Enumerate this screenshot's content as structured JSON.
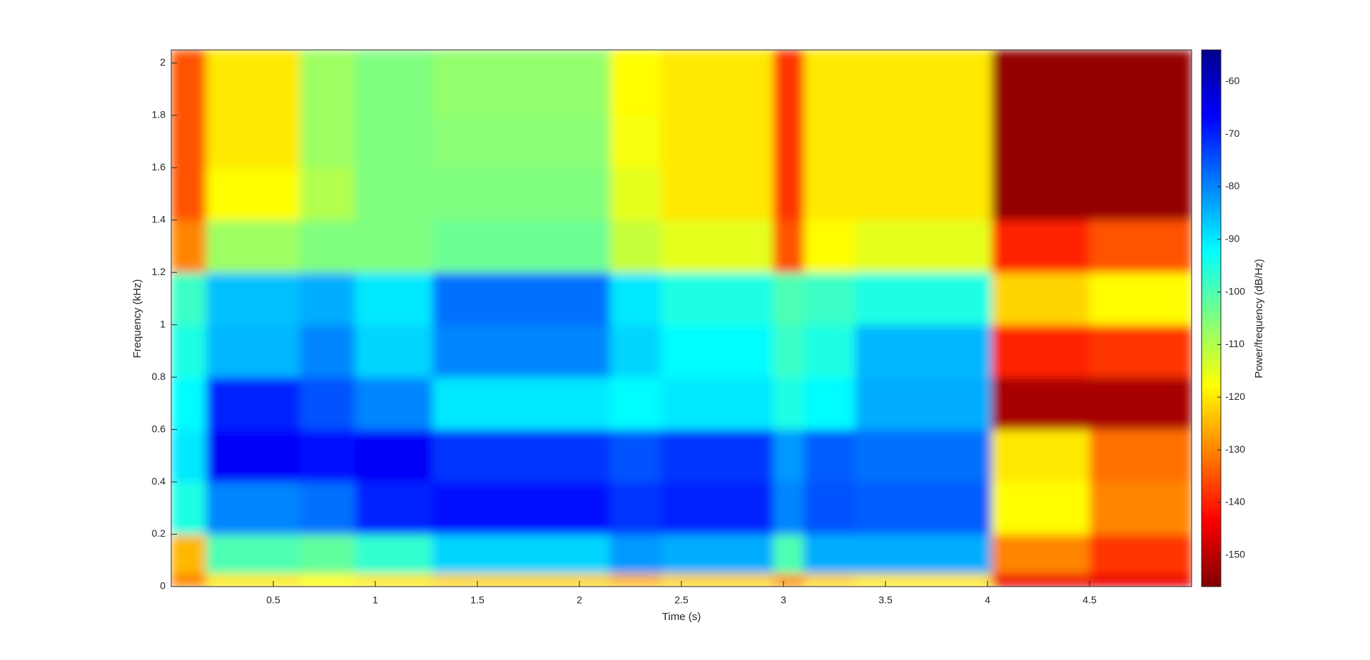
{
  "chart_data": {
    "type": "heatmap",
    "xlabel": "Time (s)",
    "ylabel": "Frequency (kHz)",
    "colorbar_label": "Power/frequency (dB/Hz)",
    "xbins": [
      0,
      0.17,
      0.63,
      0.9,
      1.28,
      2.15,
      2.4,
      2.95,
      3.1,
      3.35,
      4.02,
      4.5,
      5
    ],
    "ybins": [
      0,
      0.05,
      0.2,
      0.4,
      0.6,
      0.8,
      1.0,
      1.2,
      1.4,
      1.6,
      1.8,
      2.05
    ],
    "values": [
      [
        -130,
        -120,
        -118,
        -120,
        -122,
        -125,
        -122,
        -128,
        -122,
        -120,
        -145,
        -145
      ],
      [
        -125,
        -100,
        -102,
        -97,
        -88,
        -82,
        -84,
        -100,
        -84,
        -84,
        -130,
        -138
      ],
      [
        -95,
        -80,
        -78,
        -70,
        -68,
        -72,
        -70,
        -80,
        -75,
        -76,
        -118,
        -130
      ],
      [
        -90,
        -66,
        -68,
        -66,
        -72,
        -75,
        -72,
        -82,
        -76,
        -78,
        -120,
        -132
      ],
      [
        -92,
        -70,
        -75,
        -80,
        -90,
        -92,
        -90,
        -95,
        -92,
        -84,
        -152,
        -152
      ],
      [
        -95,
        -85,
        -80,
        -88,
        -80,
        -88,
        -92,
        -98,
        -95,
        -85,
        -140,
        -138
      ],
      [
        -98,
        -86,
        -84,
        -90,
        -78,
        -90,
        -95,
        -100,
        -98,
        -95,
        -122,
        -118
      ],
      [
        -130,
        -108,
        -105,
        -105,
        -103,
        -112,
        -115,
        -135,
        -118,
        -115,
        -140,
        -135
      ],
      [
        -135,
        -118,
        -110,
        -105,
        -105,
        -115,
        -120,
        -138,
        -120,
        -120,
        -154,
        -154
      ],
      [
        -135,
        -120,
        -108,
        -105,
        -106,
        -117,
        -120,
        -138,
        -120,
        -120,
        -154,
        -154
      ],
      [
        -135,
        -120,
        -108,
        -105,
        -107,
        -118,
        -120,
        -138,
        -120,
        -120,
        -154,
        -154
      ]
    ],
    "xlim": [
      0,
      5
    ],
    "xticks": [
      0.5,
      1,
      1.5,
      2,
      2.5,
      3,
      3.5,
      4,
      4.5
    ],
    "ylim": [
      0,
      2.05
    ],
    "yticks": [
      0,
      0.2,
      0.4,
      0.6,
      0.8,
      1,
      1.2,
      1.4,
      1.6,
      1.8,
      2
    ],
    "clim": [
      -156,
      -54
    ],
    "cticks": [
      -60,
      -70,
      -80,
      -90,
      -100,
      -110,
      -120,
      -130,
      -140,
      -150
    ],
    "colormap": [
      "#800000",
      "#ff0000",
      "#ff8000",
      "#ffff00",
      "#80ff80",
      "#00ffff",
      "#0080ff",
      "#0000ff",
      "#00008f"
    ]
  }
}
